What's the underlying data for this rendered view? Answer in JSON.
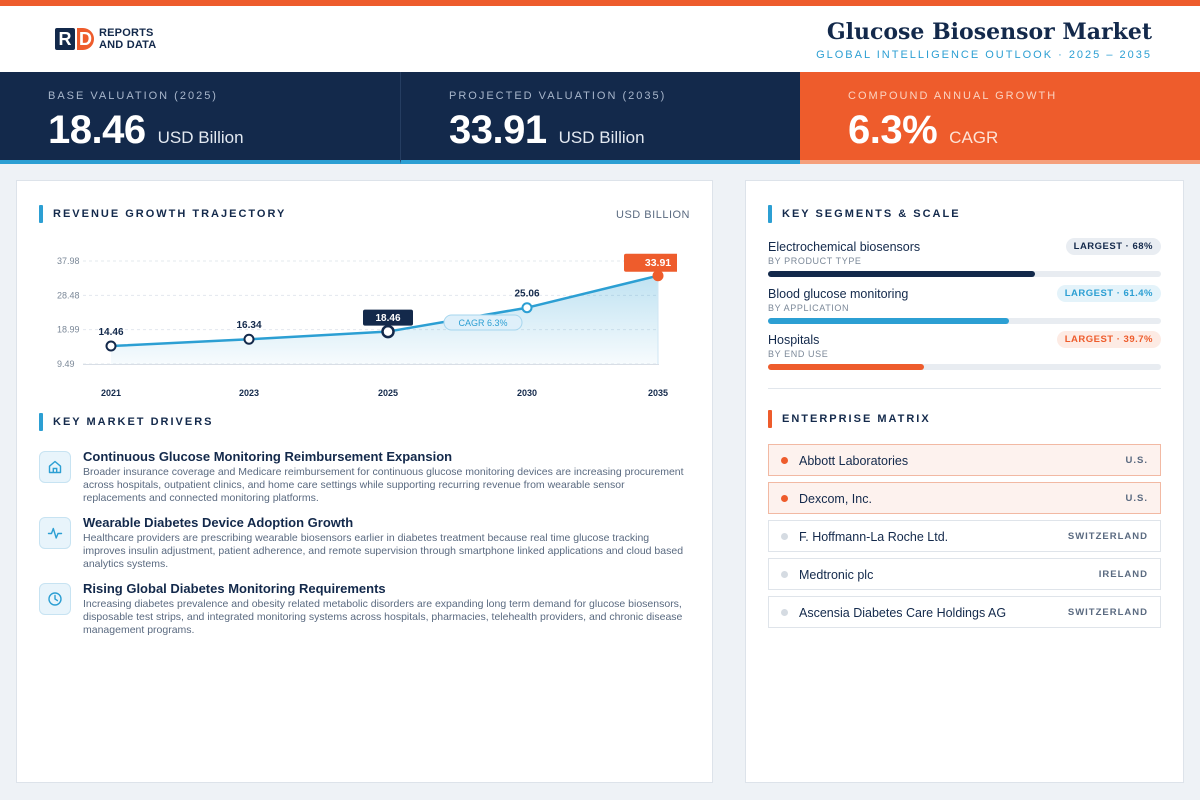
{
  "header": {
    "logo_line1": "REPORTS",
    "logo_line2": "AND DATA",
    "title": "Glucose Biosensor Market",
    "subtitle": "GLOBAL INTELLIGENCE OUTLOOK  ·  2025 – 2035"
  },
  "kpis": [
    {
      "label": "BASE VALUATION (2025)",
      "value": "18.46",
      "unit": "USD Billion"
    },
    {
      "label": "PROJECTED VALUATION (2035)",
      "value": "33.91",
      "unit": "USD Billion"
    },
    {
      "label": "COMPOUND ANNUAL GROWTH",
      "value": "6.3%",
      "unit": "CAGR"
    }
  ],
  "revenue": {
    "title": "REVENUE GROWTH TRAJECTORY",
    "unit": "USD BILLION",
    "cagr_label": "CAGR 6.3%"
  },
  "chart_data": {
    "type": "area",
    "categories": [
      "2021",
      "2023",
      "2025",
      "2030",
      "2035"
    ],
    "values": [
      14.46,
      16.34,
      18.46,
      25.06,
      33.91
    ],
    "value_labels": [
      "14.46",
      "16.34",
      "18.46",
      "25.06",
      "33.91"
    ],
    "yticks": [
      9.49,
      18.99,
      28.48,
      37.98
    ],
    "ytick_labels": [
      "9.49",
      "18.99",
      "28.48",
      "37.98"
    ],
    "ylim": [
      9.49,
      37.98
    ],
    "highlight": {
      "base_index": 2,
      "projected_index": 4
    },
    "colors": {
      "line": "#2c9fd3",
      "base": "#13294b",
      "projected": "#ee5c2c"
    },
    "grid": true
  },
  "drivers": {
    "title": "KEY MARKET DRIVERS",
    "items": [
      {
        "icon": "home-icon",
        "title": "Continuous Glucose Monitoring Reimbursement Expansion",
        "desc": "Broader insurance coverage and Medicare reimbursement for continuous glucose monitoring devices are increasing procurement across hospitals, outpatient clinics, and home care settings while supporting recurring revenue from wearable sensor replacements and connected monitoring platforms."
      },
      {
        "icon": "pulse-icon",
        "title": "Wearable Diabetes Device Adoption Growth",
        "desc": "Healthcare providers are prescribing wearable biosensors earlier in diabetes treatment because real time glucose tracking improves insulin adjustment, patient adherence, and remote supervision through smartphone linked applications and cloud based analytics systems."
      },
      {
        "icon": "clock-icon",
        "title": "Rising Global Diabetes Monitoring Requirements",
        "desc": "Increasing diabetes prevalence and obesity related metabolic disorders are expanding long term demand for glucose biosensors, disposable test strips, and integrated monitoring systems across hospitals, pharmacies, telehealth providers, and chronic disease management programs."
      }
    ]
  },
  "segments": {
    "title": "KEY SEGMENTS & SCALE",
    "items": [
      {
        "name": "Electrochemical biosensors",
        "sub": "BY PRODUCT TYPE",
        "badge": "LARGEST · 68%",
        "share": 0.68,
        "color": "#13294b",
        "badge_bg": "#e9edf2",
        "badge_fg": "#13294b"
      },
      {
        "name": "Blood glucose monitoring",
        "sub": "BY APPLICATION",
        "badge": "LARGEST · 61.4%",
        "share": 0.614,
        "color": "#2c9fd3",
        "badge_bg": "#e4f3fa",
        "badge_fg": "#2c9fd3"
      },
      {
        "name": "Hospitals",
        "sub": "BY END USE",
        "badge": "LARGEST · 39.7%",
        "share": 0.397,
        "color": "#ee5c2c",
        "badge_bg": "#fdebe4",
        "badge_fg": "#ee5c2c"
      }
    ]
  },
  "enterprise": {
    "title": "ENTERPRISE MATRIX",
    "companies": [
      {
        "name": "Abbott Laboratories",
        "country": "U.S.",
        "highlight": true
      },
      {
        "name": "Dexcom, Inc.",
        "country": "U.S.",
        "highlight": true
      },
      {
        "name": "F. Hoffmann-La Roche Ltd.",
        "country": "SWITZERLAND",
        "highlight": false
      },
      {
        "name": "Medtronic plc",
        "country": "IRELAND",
        "highlight": false
      },
      {
        "name": "Ascensia Diabetes Care Holdings AG",
        "country": "SWITZERLAND",
        "highlight": false
      }
    ]
  }
}
